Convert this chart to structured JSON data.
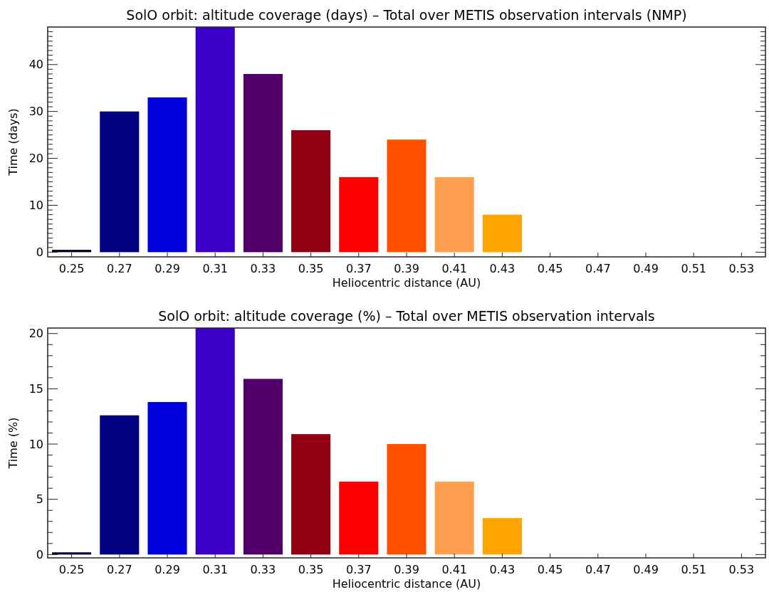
{
  "chart_data": [
    {
      "type": "bar",
      "title": "SolO orbit: altitude coverage (days) – Total over METIS observation intervals (NMP)",
      "xlabel": "Heliocentric distance (AU)",
      "ylabel": "Time (days)",
      "categories": [
        "0.25",
        "0.27",
        "0.29",
        "0.31",
        "0.33",
        "0.35",
        "0.37",
        "0.39",
        "0.41",
        "0.43",
        "0.45",
        "0.47",
        "0.49",
        "0.51",
        "0.53"
      ],
      "values": [
        0.5,
        30,
        33,
        48,
        38,
        26,
        16,
        24,
        16,
        8,
        0,
        0,
        0,
        0,
        0
      ],
      "colors": [
        "#00002a",
        "#000080",
        "#0000dd",
        "#3a00c8",
        "#500068",
        "#900010",
        "#ff0000",
        "#ff5000",
        "#ffa050",
        "#ffa500",
        "#ffd000",
        "#ffd000",
        "#ffd000",
        "#ffd000",
        "#ffd000"
      ],
      "ylim": [
        -1,
        48
      ],
      "yticks": [
        0,
        {
          "value": 1,
          "label": null
        },
        {
          "value": 2,
          "label": null
        },
        {
          "value": 3,
          "label": null
        },
        {
          "value": 4,
          "label": null
        },
        {
          "value": 5,
          "label": null
        },
        {
          "value": 6,
          "label": null
        },
        {
          "value": 7,
          "label": null
        },
        {
          "value": 8,
          "label": null
        },
        {
          "value": 9,
          "label": null
        },
        10,
        {
          "value": 11,
          "label": null
        },
        {
          "value": 12,
          "label": null
        },
        {
          "value": 13,
          "label": null
        },
        {
          "value": 14,
          "label": null
        },
        {
          "value": 15,
          "label": null
        },
        {
          "value": 16,
          "label": null
        },
        {
          "value": 17,
          "label": null
        },
        {
          "value": 18,
          "label": null
        },
        {
          "value": 19,
          "label": null
        },
        20,
        {
          "value": 21,
          "label": null
        },
        {
          "value": 22,
          "label": null
        },
        {
          "value": 23,
          "label": null
        },
        {
          "value": 24,
          "label": null
        },
        {
          "value": 25,
          "label": null
        },
        {
          "value": 26,
          "label": null
        },
        {
          "value": 27,
          "label": null
        },
        {
          "value": 28,
          "label": null
        },
        {
          "value": 29,
          "label": null
        },
        30,
        {
          "value": 31,
          "label": null
        },
        {
          "value": 32,
          "label": null
        },
        {
          "value": 33,
          "label": null
        },
        {
          "value": 34,
          "label": null
        },
        {
          "value": 35,
          "label": null
        },
        {
          "value": 36,
          "label": null
        },
        {
          "value": 37,
          "label": null
        },
        {
          "value": 38,
          "label": null
        },
        {
          "value": 39,
          "label": null
        },
        40,
        {
          "value": 41,
          "label": null
        },
        {
          "value": 42,
          "label": null
        },
        {
          "value": 43,
          "label": null
        },
        {
          "value": 44,
          "label": null
        },
        {
          "value": 45,
          "label": null
        },
        {
          "value": 46,
          "label": null
        },
        {
          "value": 47,
          "label": null
        }
      ]
    },
    {
      "type": "bar",
      "title": "SolO orbit: altitude coverage (%) – Total over METIS observation intervals",
      "xlabel": "Heliocentric distance (AU)",
      "ylabel": "Time (%)",
      "categories": [
        "0.25",
        "0.27",
        "0.29",
        "0.31",
        "0.33",
        "0.35",
        "0.37",
        "0.39",
        "0.41",
        "0.43",
        "0.45",
        "0.47",
        "0.49",
        "0.51",
        "0.53"
      ],
      "values": [
        0.2,
        12.6,
        13.8,
        20.5,
        15.9,
        10.9,
        6.6,
        10,
        6.6,
        3.3,
        0,
        0,
        0,
        0,
        0
      ],
      "colors": [
        "#00002a",
        "#000080",
        "#0000dd",
        "#3a00c8",
        "#500068",
        "#900010",
        "#ff0000",
        "#ff5000",
        "#ffa050",
        "#ffa500",
        "#ffd000",
        "#ffd000",
        "#ffd000",
        "#ffd000",
        "#ffd000"
      ],
      "ylim": [
        -0.3,
        20.5
      ],
      "yticks": [
        0,
        {
          "value": 1,
          "label": null
        },
        {
          "value": 2,
          "label": null
        },
        {
          "value": 3,
          "label": null
        },
        {
          "value": 4,
          "label": null
        },
        5,
        {
          "value": 6,
          "label": null
        },
        {
          "value": 7,
          "label": null
        },
        {
          "value": 8,
          "label": null
        },
        {
          "value": 9,
          "label": null
        },
        10,
        {
          "value": 11,
          "label": null
        },
        {
          "value": 12,
          "label": null
        },
        {
          "value": 13,
          "label": null
        },
        {
          "value": 14,
          "label": null
        },
        15,
        {
          "value": 16,
          "label": null
        },
        {
          "value": 17,
          "label": null
        },
        {
          "value": 18,
          "label": null
        },
        {
          "value": 19,
          "label": null
        },
        20
      ]
    }
  ]
}
